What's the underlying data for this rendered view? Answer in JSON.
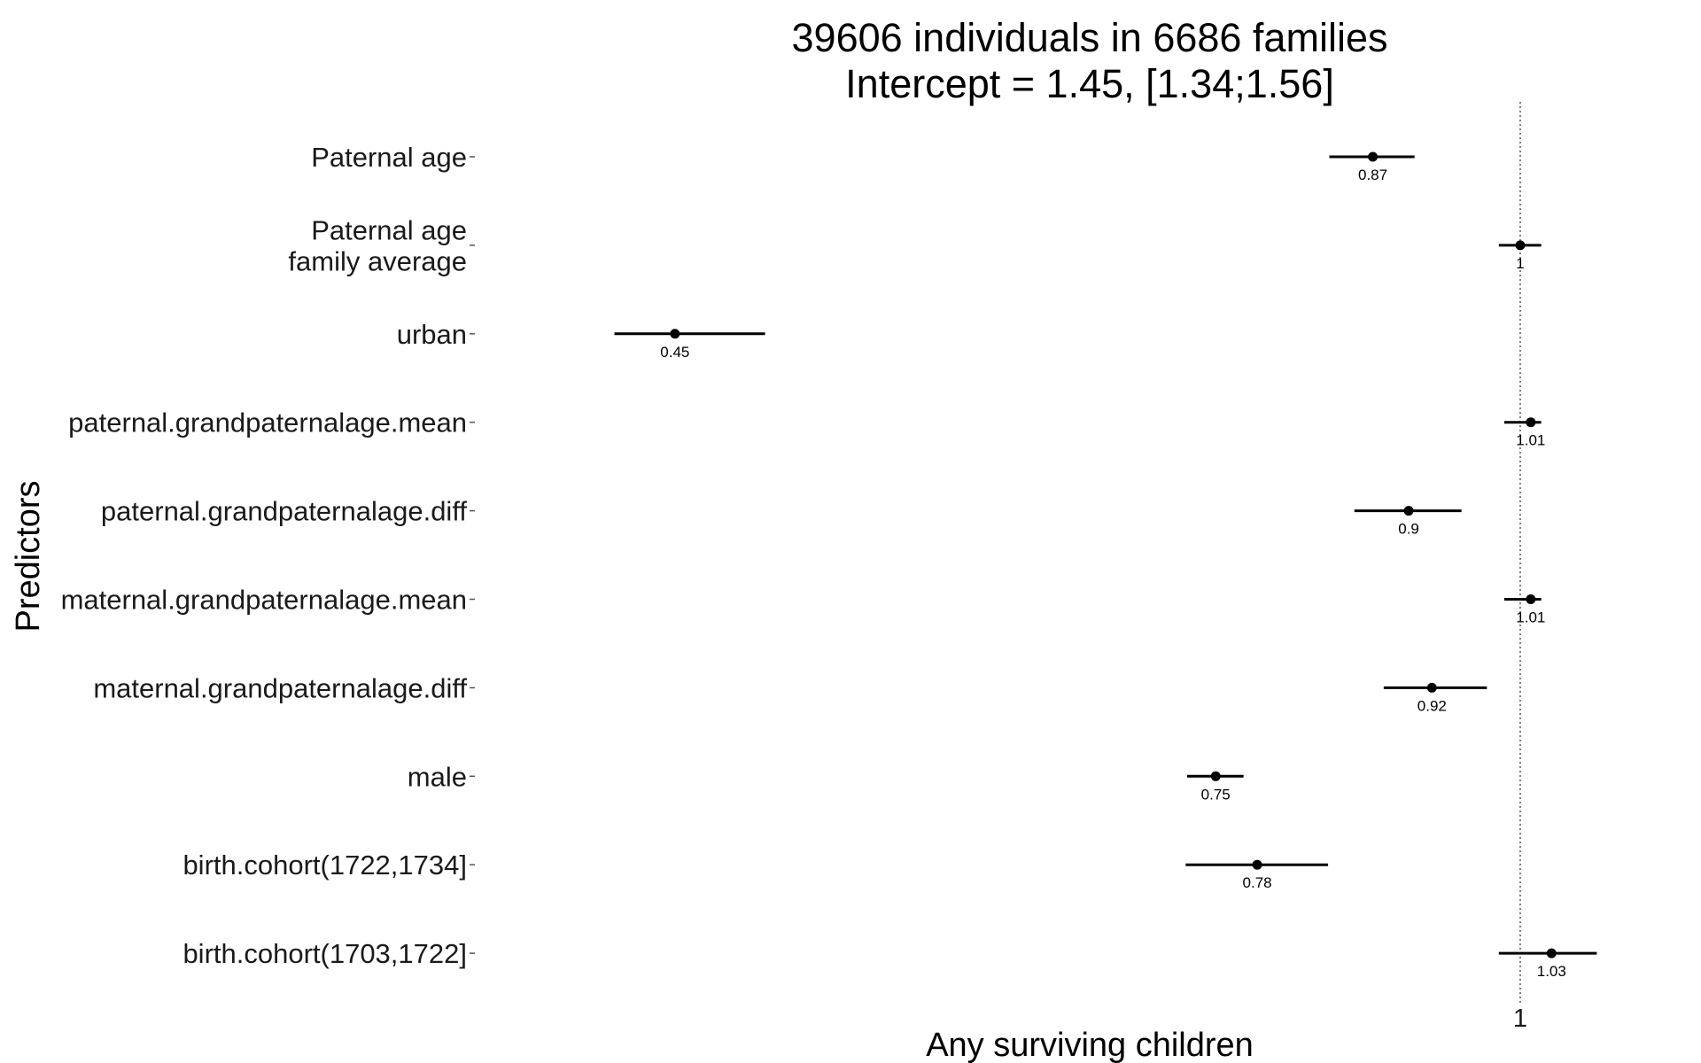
{
  "chart_data": {
    "type": "forest",
    "title_lines": [
      "39606 individuals in 6686 families",
      "Intercept = 1.45, [1.34;1.56]"
    ],
    "xlabel": "Any surviving children",
    "ylabel": "Predictors",
    "xscale": "log",
    "xlim": [
      0.393,
      1.13
    ],
    "reference_line": 1,
    "x_ticks": [
      {
        "value": 1,
        "label": "1"
      }
    ],
    "grid": false,
    "rows": [
      {
        "label_lines": [
          "Paternal age"
        ],
        "estimate": 0.87,
        "label": "0.87",
        "ci": [
          0.835,
          0.905
        ]
      },
      {
        "label_lines": [
          "Paternal age",
          "family average"
        ],
        "estimate": 1.0,
        "label": "1",
        "ci": [
          0.98,
          1.02
        ]
      },
      {
        "label_lines": [
          "urban"
        ],
        "estimate": 0.45,
        "label": "0.45",
        "ci": [
          0.425,
          0.49
        ]
      },
      {
        "label_lines": [
          "paternal.grandpaternalage.mean"
        ],
        "estimate": 1.01,
        "label": "1.01",
        "ci": [
          0.985,
          1.02
        ]
      },
      {
        "label_lines": [
          "paternal.grandpaternalage.diff"
        ],
        "estimate": 0.9,
        "label": "0.9",
        "ci": [
          0.855,
          0.946
        ]
      },
      {
        "label_lines": [
          "maternal.grandpaternalage.mean"
        ],
        "estimate": 1.01,
        "label": "1.01",
        "ci": [
          0.985,
          1.02
        ]
      },
      {
        "label_lines": [
          "maternal.grandpaternalage.diff"
        ],
        "estimate": 0.92,
        "label": "0.92",
        "ci": [
          0.879,
          0.969
        ]
      },
      {
        "label_lines": [
          "male"
        ],
        "estimate": 0.75,
        "label": "0.75",
        "ci": [
          0.73,
          0.77
        ]
      },
      {
        "label_lines": [
          "birth.cohort(1722,1734]"
        ],
        "estimate": 0.78,
        "label": "0.78",
        "ci": [
          0.729,
          0.834
        ]
      },
      {
        "label_lines": [
          "birth.cohort(1703,1722]"
        ],
        "estimate": 1.03,
        "label": "1.03",
        "ci": [
          0.98,
          1.075
        ]
      }
    ]
  }
}
